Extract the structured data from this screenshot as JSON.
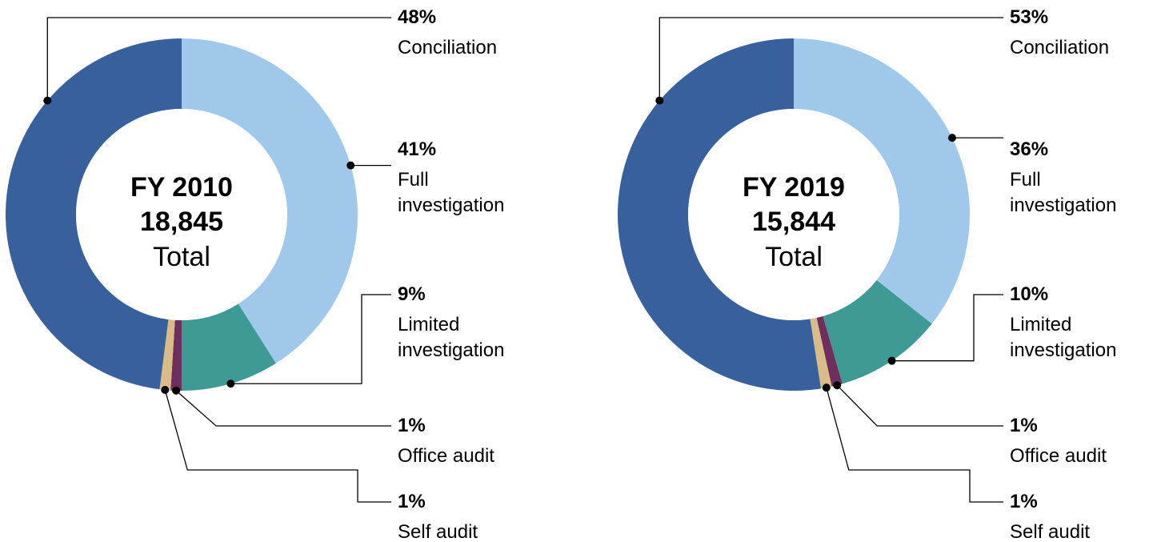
{
  "chart_data": [
    {
      "type": "donut",
      "title": "FY 2010",
      "subtitle": "18,845",
      "center_label": "Total",
      "categories": [
        "Full investigation",
        "Limited investigation",
        "Office audit",
        "Self audit",
        "Conciliation"
      ],
      "values": [
        41,
        9,
        1,
        1,
        48
      ],
      "value_labels": [
        "41%",
        "9%",
        "1%",
        "1%",
        "48%"
      ],
      "colors": [
        "#9fc8eb",
        "#3e9a94",
        "#6e2e5e",
        "#d9bc86",
        "#37609d"
      ]
    },
    {
      "type": "donut",
      "title": "FY 2019",
      "subtitle": "15,844",
      "center_label": "Total",
      "categories": [
        "Full investigation",
        "Limited investigation",
        "Office audit",
        "Self audit",
        "Conciliation"
      ],
      "values": [
        36,
        10,
        1,
        1,
        53
      ],
      "value_labels": [
        "36%",
        "10%",
        "1%",
        "1%",
        "53%"
      ],
      "colors": [
        "#9fc8eb",
        "#3e9a94",
        "#6e2e5e",
        "#d9bc86",
        "#37609d"
      ]
    }
  ]
}
